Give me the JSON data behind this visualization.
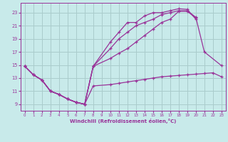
{
  "background_color": "#c8eaea",
  "grid_color": "#aacccc",
  "line_color": "#993399",
  "xlabel": "Windchill (Refroidissement éolien,°C)",
  "xlim": [
    -0.5,
    23.5
  ],
  "ylim": [
    8.0,
    24.5
  ],
  "yticks": [
    9,
    11,
    13,
    15,
    17,
    19,
    21,
    23
  ],
  "xticks": [
    0,
    1,
    2,
    3,
    4,
    5,
    6,
    7,
    8,
    9,
    10,
    11,
    12,
    13,
    14,
    15,
    16,
    17,
    18,
    19,
    20,
    21,
    22,
    23
  ],
  "series": [
    {
      "x": [
        0,
        1,
        2,
        3,
        4,
        5,
        6,
        7,
        8,
        10,
        11,
        12,
        13,
        14,
        15,
        16,
        17,
        18,
        19,
        20,
        21,
        22,
        23
      ],
      "y": [
        14.8,
        13.5,
        12.7,
        11.0,
        10.5,
        9.8,
        9.3,
        9.0,
        11.8,
        12.0,
        12.2,
        12.4,
        12.6,
        12.8,
        13.0,
        13.2,
        13.3,
        13.4,
        13.5,
        13.6,
        13.7,
        13.8,
        13.2
      ]
    },
    {
      "x": [
        0,
        1,
        2,
        3,
        4,
        5,
        6,
        7,
        8,
        10,
        11,
        12,
        13,
        14,
        15,
        16,
        17,
        18,
        19,
        20
      ],
      "y": [
        14.8,
        13.5,
        12.7,
        11.0,
        10.5,
        9.8,
        9.3,
        9.0,
        14.8,
        16.0,
        16.8,
        17.5,
        18.5,
        19.5,
        20.5,
        21.5,
        22.0,
        23.2,
        23.2,
        22.2
      ]
    },
    {
      "x": [
        0,
        1,
        2,
        3,
        4,
        5,
        6,
        7,
        8,
        10,
        11,
        12,
        13,
        14,
        15,
        16,
        17,
        18,
        19,
        20,
        21,
        23
      ],
      "y": [
        14.8,
        13.5,
        12.7,
        11.0,
        10.5,
        9.8,
        9.3,
        9.0,
        14.8,
        17.5,
        19.0,
        20.0,
        21.0,
        21.5,
        22.0,
        22.7,
        23.0,
        23.3,
        23.3,
        22.3,
        17.0,
        14.9
      ]
    },
    {
      "x": [
        0,
        1,
        2,
        3,
        4,
        5,
        6,
        7,
        8,
        10,
        11,
        12,
        13,
        14,
        15,
        16,
        17,
        18,
        19,
        20
      ],
      "y": [
        14.8,
        13.5,
        12.7,
        11.0,
        10.5,
        9.8,
        9.3,
        9.0,
        14.8,
        18.5,
        20.0,
        21.5,
        21.5,
        22.5,
        23.0,
        23.0,
        23.3,
        23.6,
        23.5,
        22.0
      ]
    }
  ]
}
